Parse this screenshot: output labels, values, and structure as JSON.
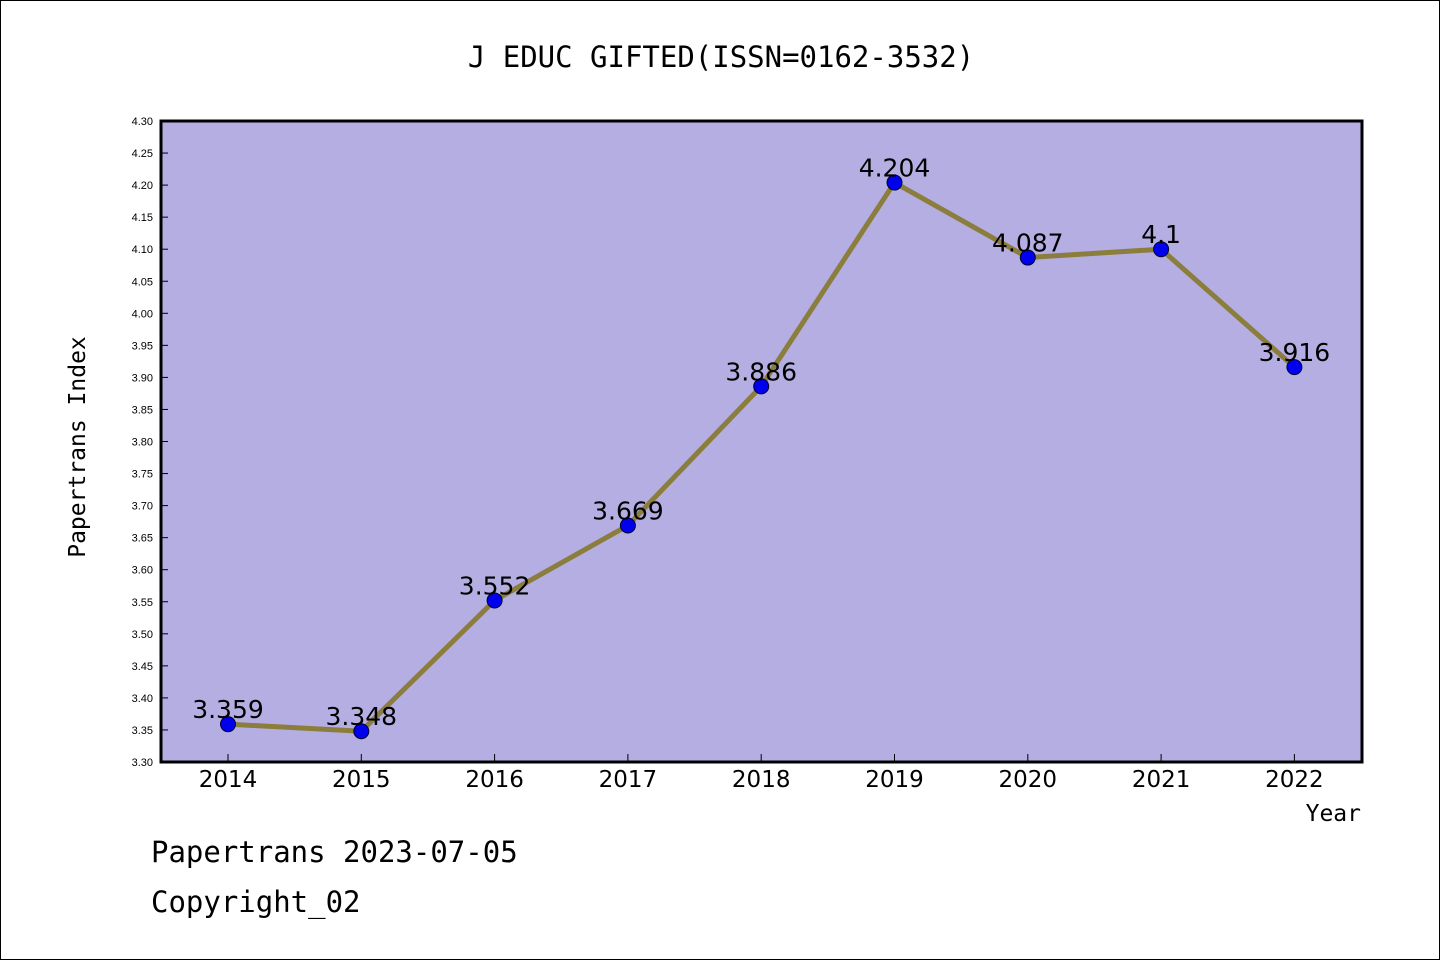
{
  "chart_data": {
    "type": "line",
    "title": "J EDUC GIFTED(ISSN=0162-3532)",
    "xlabel": "Year",
    "ylabel": "Papertrans Index",
    "categories": [
      "2014",
      "2015",
      "2016",
      "2017",
      "2018",
      "2019",
      "2020",
      "2021",
      "2022"
    ],
    "series": [
      {
        "values": [
          3.359,
          3.348,
          3.552,
          3.669,
          3.886,
          4.204,
          4.087,
          4.1,
          3.916
        ],
        "labels": [
          "3.359",
          "3.348",
          "3.552",
          "3.669",
          "3.886",
          "4.204",
          "4.087",
          "4.1",
          "3.916"
        ]
      }
    ],
    "ylim": [
      3.3,
      4.3
    ],
    "ytick_step": 0.05,
    "yticks": [
      "3.30",
      "3.35",
      "3.40",
      "3.45",
      "3.50",
      "3.55",
      "3.60",
      "3.65",
      "3.70",
      "3.75",
      "3.80",
      "3.85",
      "3.90",
      "3.95",
      "4.00",
      "4.05",
      "4.10",
      "4.15",
      "4.20",
      "4.25",
      "4.30"
    ],
    "grid": false,
    "legend": "none",
    "colors": {
      "plot_background": "#b4aee2",
      "line": "#8b7d3c",
      "marker": "#0000ee",
      "axes": "#000000"
    }
  },
  "footer": {
    "line1": "Papertrans 2023-07-05",
    "line2": "Copyright_02"
  }
}
